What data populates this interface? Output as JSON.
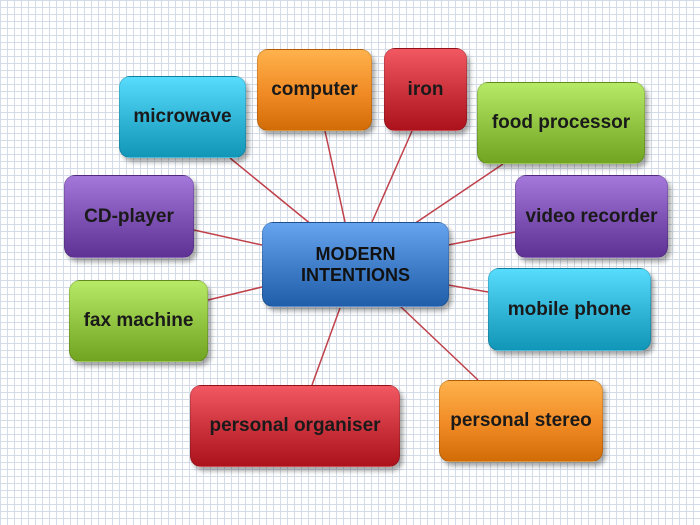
{
  "diagram": {
    "center": {
      "label": "MODERN\nINTENTIONS",
      "color": "#3f7cc8"
    },
    "nodes": [
      {
        "id": "microwave",
        "label": "microwave",
        "color": "#2fb4d6"
      },
      {
        "id": "computer",
        "label": "computer",
        "color": "#f08a24"
      },
      {
        "id": "iron",
        "label": "iron",
        "color": "#c9303a"
      },
      {
        "id": "food-processor",
        "label": "food processor",
        "color": "#8fc23f"
      },
      {
        "id": "cd-player",
        "label": "CD-player",
        "color": "#7c4fb2"
      },
      {
        "id": "video-recorder",
        "label": "video recorder",
        "color": "#7c4fb2"
      },
      {
        "id": "fax-machine",
        "label": "fax machine",
        "color": "#8fc23f"
      },
      {
        "id": "mobile-phone",
        "label": "mobile phone",
        "color": "#2fb4d6"
      },
      {
        "id": "personal-organiser",
        "label": "personal organiser",
        "color": "#c9303a"
      },
      {
        "id": "personal-stereo",
        "label": "personal stereo",
        "color": "#f08a24"
      }
    ],
    "connector_color": "#c0404a"
  }
}
